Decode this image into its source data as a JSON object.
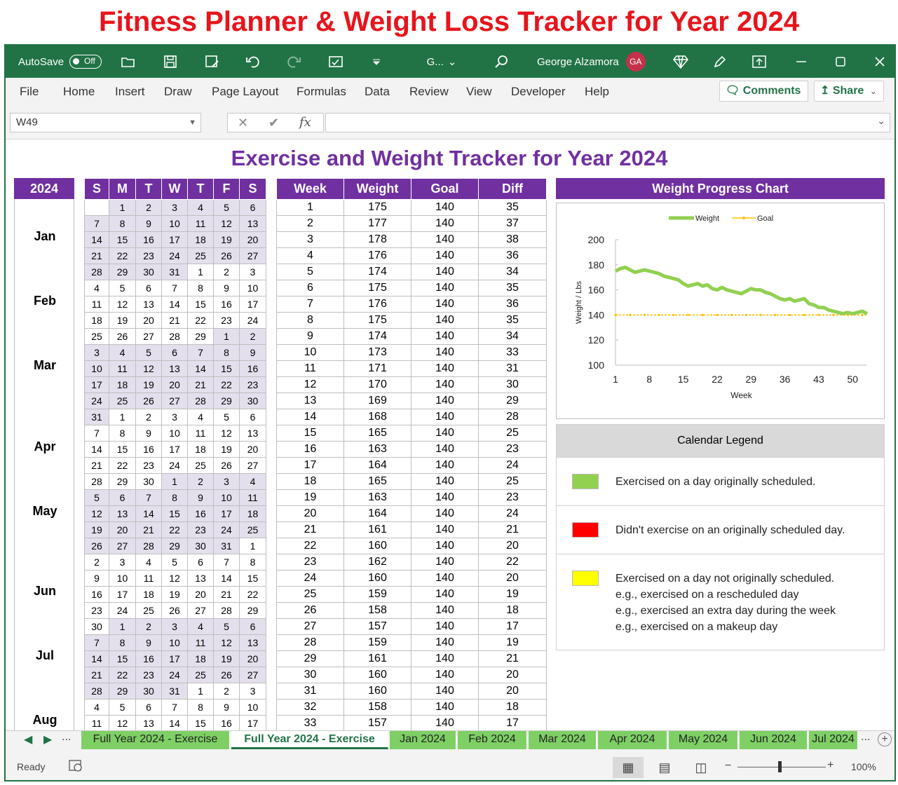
{
  "banner": "Fitness Planner & Weight Loss Tracker for Year 2024",
  "titlebar": {
    "autosave": "AutoSave",
    "autosave_state": "Off",
    "filename": "G...",
    "user": "George Alzamora",
    "initials": "GA"
  },
  "menu": [
    "File",
    "Home",
    "Insert",
    "Draw",
    "Page Layout",
    "Formulas",
    "Data",
    "Review",
    "View",
    "Developer",
    "Help"
  ],
  "comments_label": "Comments",
  "share_label": "Share",
  "namebox": "W49",
  "sheet_title": "Exercise and Weight Tracker for Year 2024",
  "year_label": "2024",
  "months": [
    "Jan",
    "Feb",
    "Mar",
    "Apr",
    "May",
    "Jun",
    "Jul",
    "Aug"
  ],
  "day_headers": [
    "S",
    "M",
    "T",
    "W",
    "T",
    "F",
    "S"
  ],
  "calendar": [
    [
      [
        "",
        0
      ],
      [
        "1",
        1
      ],
      [
        "2",
        1
      ],
      [
        "3",
        1
      ],
      [
        "4",
        1
      ],
      [
        "5",
        1
      ],
      [
        "6",
        1
      ]
    ],
    [
      [
        "7",
        1
      ],
      [
        "8",
        1
      ],
      [
        "9",
        1
      ],
      [
        "10",
        1
      ],
      [
        "11",
        1
      ],
      [
        "12",
        1
      ],
      [
        "13",
        1
      ]
    ],
    [
      [
        "14",
        1
      ],
      [
        "15",
        1
      ],
      [
        "16",
        1
      ],
      [
        "17",
        1
      ],
      [
        "18",
        1
      ],
      [
        "19",
        1
      ],
      [
        "20",
        1
      ]
    ],
    [
      [
        "21",
        1
      ],
      [
        "22",
        1
      ],
      [
        "23",
        1
      ],
      [
        "24",
        1
      ],
      [
        "25",
        1
      ],
      [
        "26",
        1
      ],
      [
        "27",
        1
      ]
    ],
    [
      [
        "28",
        1
      ],
      [
        "29",
        1
      ],
      [
        "30",
        1
      ],
      [
        "31",
        1
      ],
      [
        "1",
        0
      ],
      [
        "2",
        0
      ],
      [
        "3",
        0
      ]
    ],
    [
      [
        "4",
        0
      ],
      [
        "5",
        0
      ],
      [
        "6",
        0
      ],
      [
        "7",
        0
      ],
      [
        "8",
        0
      ],
      [
        "9",
        0
      ],
      [
        "10",
        0
      ]
    ],
    [
      [
        "11",
        0
      ],
      [
        "12",
        0
      ],
      [
        "13",
        0
      ],
      [
        "14",
        0
      ],
      [
        "15",
        0
      ],
      [
        "16",
        0
      ],
      [
        "17",
        0
      ]
    ],
    [
      [
        "18",
        0
      ],
      [
        "19",
        0
      ],
      [
        "20",
        0
      ],
      [
        "21",
        0
      ],
      [
        "22",
        0
      ],
      [
        "23",
        0
      ],
      [
        "24",
        0
      ]
    ],
    [
      [
        "25",
        0
      ],
      [
        "26",
        0
      ],
      [
        "27",
        0
      ],
      [
        "28",
        0
      ],
      [
        "29",
        0
      ],
      [
        "1",
        1
      ],
      [
        "2",
        1
      ]
    ],
    [
      [
        "3",
        1
      ],
      [
        "4",
        1
      ],
      [
        "5",
        1
      ],
      [
        "6",
        1
      ],
      [
        "7",
        1
      ],
      [
        "8",
        1
      ],
      [
        "9",
        1
      ]
    ],
    [
      [
        "10",
        1
      ],
      [
        "11",
        1
      ],
      [
        "12",
        1
      ],
      [
        "13",
        1
      ],
      [
        "14",
        1
      ],
      [
        "15",
        1
      ],
      [
        "16",
        1
      ]
    ],
    [
      [
        "17",
        1
      ],
      [
        "18",
        1
      ],
      [
        "19",
        1
      ],
      [
        "20",
        1
      ],
      [
        "21",
        1
      ],
      [
        "22",
        1
      ],
      [
        "23",
        1
      ]
    ],
    [
      [
        "24",
        1
      ],
      [
        "25",
        1
      ],
      [
        "26",
        1
      ],
      [
        "27",
        1
      ],
      [
        "28",
        1
      ],
      [
        "29",
        1
      ],
      [
        "30",
        1
      ]
    ],
    [
      [
        "31",
        1
      ],
      [
        "1",
        0
      ],
      [
        "2",
        0
      ],
      [
        "3",
        0
      ],
      [
        "4",
        0
      ],
      [
        "5",
        0
      ],
      [
        "6",
        0
      ]
    ],
    [
      [
        "7",
        0
      ],
      [
        "8",
        0
      ],
      [
        "9",
        0
      ],
      [
        "10",
        0
      ],
      [
        "11",
        0
      ],
      [
        "12",
        0
      ],
      [
        "13",
        0
      ]
    ],
    [
      [
        "14",
        0
      ],
      [
        "15",
        0
      ],
      [
        "16",
        0
      ],
      [
        "17",
        0
      ],
      [
        "18",
        0
      ],
      [
        "19",
        0
      ],
      [
        "20",
        0
      ]
    ],
    [
      [
        "21",
        0
      ],
      [
        "22",
        0
      ],
      [
        "23",
        0
      ],
      [
        "24",
        0
      ],
      [
        "25",
        0
      ],
      [
        "26",
        0
      ],
      [
        "27",
        0
      ]
    ],
    [
      [
        "28",
        0
      ],
      [
        "29",
        0
      ],
      [
        "30",
        0
      ],
      [
        "1",
        1
      ],
      [
        "2",
        1
      ],
      [
        "3",
        1
      ],
      [
        "4",
        1
      ]
    ],
    [
      [
        "5",
        1
      ],
      [
        "6",
        1
      ],
      [
        "7",
        1
      ],
      [
        "8",
        1
      ],
      [
        "9",
        1
      ],
      [
        "10",
        1
      ],
      [
        "11",
        1
      ]
    ],
    [
      [
        "12",
        1
      ],
      [
        "13",
        1
      ],
      [
        "14",
        1
      ],
      [
        "15",
        1
      ],
      [
        "16",
        1
      ],
      [
        "17",
        1
      ],
      [
        "18",
        1
      ]
    ],
    [
      [
        "19",
        1
      ],
      [
        "20",
        1
      ],
      [
        "21",
        1
      ],
      [
        "22",
        1
      ],
      [
        "23",
        1
      ],
      [
        "24",
        1
      ],
      [
        "25",
        1
      ]
    ],
    [
      [
        "26",
        1
      ],
      [
        "27",
        1
      ],
      [
        "28",
        1
      ],
      [
        "29",
        1
      ],
      [
        "30",
        1
      ],
      [
        "31",
        1
      ],
      [
        "1",
        0
      ]
    ],
    [
      [
        "2",
        0
      ],
      [
        "3",
        0
      ],
      [
        "4",
        0
      ],
      [
        "5",
        0
      ],
      [
        "6",
        0
      ],
      [
        "7",
        0
      ],
      [
        "8",
        0
      ]
    ],
    [
      [
        "9",
        0
      ],
      [
        "10",
        0
      ],
      [
        "11",
        0
      ],
      [
        "12",
        0
      ],
      [
        "13",
        0
      ],
      [
        "14",
        0
      ],
      [
        "15",
        0
      ]
    ],
    [
      [
        "16",
        0
      ],
      [
        "17",
        0
      ],
      [
        "18",
        0
      ],
      [
        "19",
        0
      ],
      [
        "20",
        0
      ],
      [
        "21",
        0
      ],
      [
        "22",
        0
      ]
    ],
    [
      [
        "23",
        0
      ],
      [
        "24",
        0
      ],
      [
        "25",
        0
      ],
      [
        "26",
        0
      ],
      [
        "27",
        0
      ],
      [
        "28",
        0
      ],
      [
        "29",
        0
      ]
    ],
    [
      [
        "30",
        0
      ],
      [
        "1",
        1
      ],
      [
        "2",
        1
      ],
      [
        "3",
        1
      ],
      [
        "4",
        1
      ],
      [
        "5",
        1
      ],
      [
        "6",
        1
      ]
    ],
    [
      [
        "7",
        1
      ],
      [
        "8",
        1
      ],
      [
        "9",
        1
      ],
      [
        "10",
        1
      ],
      [
        "11",
        1
      ],
      [
        "12",
        1
      ],
      [
        "13",
        1
      ]
    ],
    [
      [
        "14",
        1
      ],
      [
        "15",
        1
      ],
      [
        "16",
        1
      ],
      [
        "17",
        1
      ],
      [
        "18",
        1
      ],
      [
        "19",
        1
      ],
      [
        "20",
        1
      ]
    ],
    [
      [
        "21",
        1
      ],
      [
        "22",
        1
      ],
      [
        "23",
        1
      ],
      [
        "24",
        1
      ],
      [
        "25",
        1
      ],
      [
        "26",
        1
      ],
      [
        "27",
        1
      ]
    ],
    [
      [
        "28",
        1
      ],
      [
        "29",
        1
      ],
      [
        "30",
        1
      ],
      [
        "31",
        1
      ],
      [
        "1",
        0
      ],
      [
        "2",
        0
      ],
      [
        "3",
        0
      ]
    ],
    [
      [
        "4",
        0
      ],
      [
        "5",
        0
      ],
      [
        "6",
        0
      ],
      [
        "7",
        0
      ],
      [
        "8",
        0
      ],
      [
        "9",
        0
      ],
      [
        "10",
        0
      ]
    ],
    [
      [
        "11",
        0
      ],
      [
        "12",
        0
      ],
      [
        "13",
        0
      ],
      [
        "14",
        0
      ],
      [
        "15",
        0
      ],
      [
        "16",
        0
      ],
      [
        "17",
        0
      ]
    ]
  ],
  "weight_headers": [
    "Week",
    "Weight",
    "Goal",
    "Diff"
  ],
  "weight_rows": [
    [
      "1",
      "175",
      "140",
      "35"
    ],
    [
      "2",
      "177",
      "140",
      "37"
    ],
    [
      "3",
      "178",
      "140",
      "38"
    ],
    [
      "4",
      "176",
      "140",
      "36"
    ],
    [
      "5",
      "174",
      "140",
      "34"
    ],
    [
      "6",
      "175",
      "140",
      "35"
    ],
    [
      "7",
      "176",
      "140",
      "36"
    ],
    [
      "8",
      "175",
      "140",
      "35"
    ],
    [
      "9",
      "174",
      "140",
      "34"
    ],
    [
      "10",
      "173",
      "140",
      "33"
    ],
    [
      "11",
      "171",
      "140",
      "31"
    ],
    [
      "12",
      "170",
      "140",
      "30"
    ],
    [
      "13",
      "169",
      "140",
      "29"
    ],
    [
      "14",
      "168",
      "140",
      "28"
    ],
    [
      "15",
      "165",
      "140",
      "25"
    ],
    [
      "16",
      "163",
      "140",
      "23"
    ],
    [
      "17",
      "164",
      "140",
      "24"
    ],
    [
      "18",
      "165",
      "140",
      "25"
    ],
    [
      "19",
      "163",
      "140",
      "23"
    ],
    [
      "20",
      "164",
      "140",
      "24"
    ],
    [
      "21",
      "161",
      "140",
      "21"
    ],
    [
      "22",
      "160",
      "140",
      "20"
    ],
    [
      "23",
      "162",
      "140",
      "22"
    ],
    [
      "24",
      "160",
      "140",
      "20"
    ],
    [
      "25",
      "159",
      "140",
      "19"
    ],
    [
      "26",
      "158",
      "140",
      "18"
    ],
    [
      "27",
      "157",
      "140",
      "17"
    ],
    [
      "28",
      "159",
      "140",
      "19"
    ],
    [
      "29",
      "161",
      "140",
      "21"
    ],
    [
      "30",
      "160",
      "140",
      "20"
    ],
    [
      "31",
      "160",
      "140",
      "20"
    ],
    [
      "32",
      "158",
      "140",
      "18"
    ],
    [
      "33",
      "157",
      "140",
      "17"
    ]
  ],
  "chart_header": "Weight Progress Chart",
  "chart_data": {
    "type": "line",
    "xlabel": "Week",
    "ylabel": "Weight / Lbs",
    "ylim": [
      100,
      200
    ],
    "yticks": [
      100,
      120,
      140,
      160,
      180,
      200
    ],
    "xlim": [
      1,
      53
    ],
    "xticks": [
      1,
      8,
      15,
      22,
      29,
      36,
      43,
      50
    ],
    "legend": "top",
    "series": [
      {
        "name": "Weight",
        "color": "#92d050",
        "values": [
          175,
          177,
          178,
          176,
          174,
          175,
          176,
          175,
          174,
          173,
          171,
          170,
          169,
          168,
          165,
          163,
          164,
          165,
          163,
          164,
          161,
          160,
          162,
          160,
          159,
          158,
          157,
          159,
          161,
          160,
          160,
          158,
          157,
          155,
          153,
          152,
          153,
          151,
          152,
          153,
          149,
          148,
          146,
          146,
          144,
          143,
          142,
          141,
          142,
          141,
          142,
          143,
          141
        ]
      },
      {
        "name": "Goal",
        "color": "#ffc000",
        "values": [
          140,
          140,
          140,
          140,
          140,
          140,
          140,
          140,
          140,
          140,
          140,
          140,
          140,
          140,
          140,
          140,
          140,
          140,
          140,
          140,
          140,
          140,
          140,
          140,
          140,
          140,
          140,
          140,
          140,
          140,
          140,
          140,
          140,
          140,
          140,
          140,
          140,
          140,
          140,
          140,
          140,
          140,
          140,
          140,
          140,
          140,
          140,
          140,
          140,
          140,
          140,
          140,
          140
        ]
      }
    ]
  },
  "legend": {
    "title": "Calendar Legend",
    "items": [
      {
        "color": "#92d050",
        "lines": [
          "Exercised on a day originally scheduled."
        ]
      },
      {
        "color": "#ff0000",
        "lines": [
          "Didn't exercise on an originally scheduled day."
        ]
      },
      {
        "color": "#ffff00",
        "lines": [
          "Exercised on a day not originally scheduled.",
          "e.g., exercised on a rescheduled day",
          "e.g., exercised an extra day during the week",
          "e.g., exercised on a makeup day"
        ]
      }
    ]
  },
  "tabs": [
    "Full Year 2024 - Exercise",
    "Full Year 2024 - Exercise",
    "Jan 2024",
    "Feb 2024",
    "Mar 2024",
    "Apr 2024",
    "May 2024",
    "Jun 2024",
    "Jul 2024"
  ],
  "status": {
    "ready": "Ready",
    "zoom": "100%"
  }
}
